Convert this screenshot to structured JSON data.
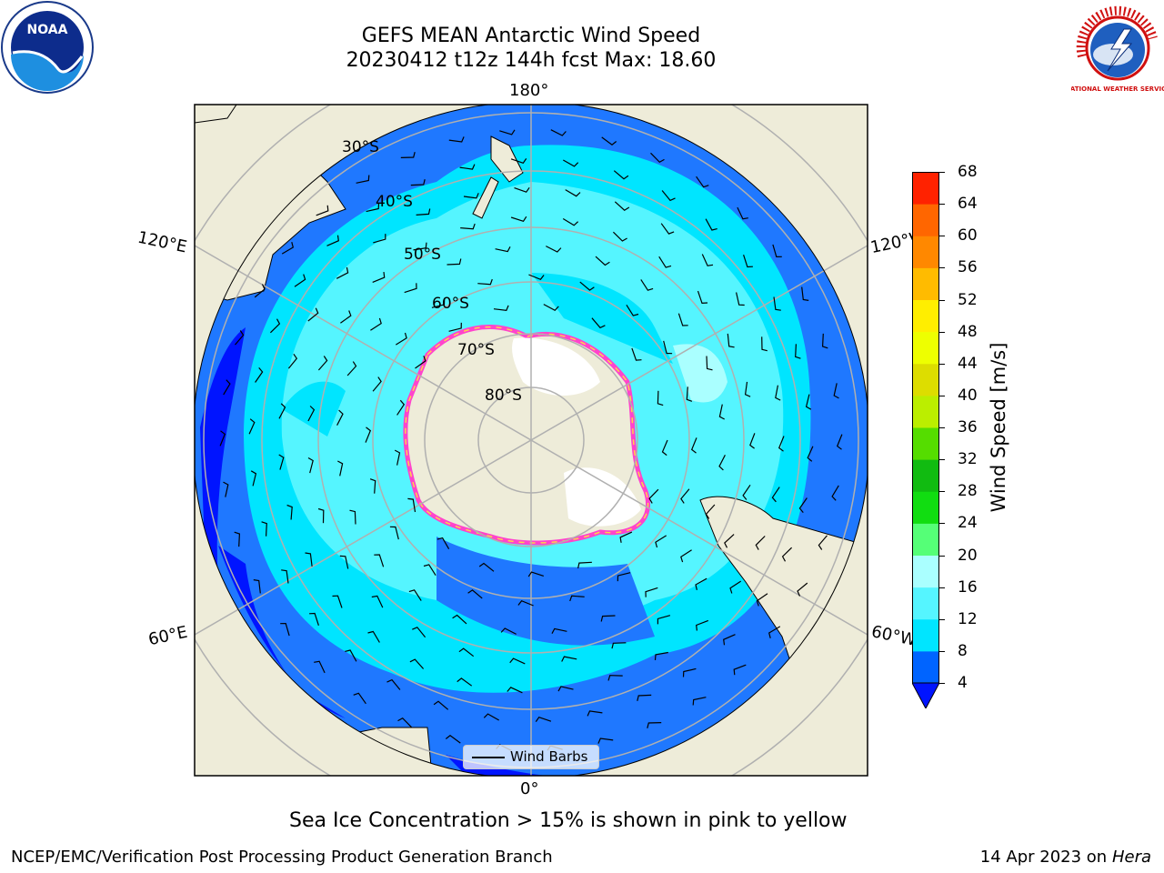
{
  "title": {
    "line1": "GEFS MEAN Antarctic Wind Speed",
    "line2": "20230412 t12z 144h fcst   Max: 18.60"
  },
  "logos": {
    "left": "noaa",
    "left_text": "NOAA",
    "right": "national-weather-service",
    "right_text": "NATIONAL WEATHER SERVICE"
  },
  "map": {
    "projection": "south-polar-stereographic",
    "longitude_labels": {
      "top": "180°",
      "bottom": "0°",
      "left_upper": "120°E",
      "left_lower": "60°E",
      "right_upper": "120°W",
      "right_lower": "60°W"
    },
    "latitude_labels": [
      "30°S",
      "40°S",
      "50°S",
      "60°S",
      "70°S",
      "80°S"
    ],
    "colors": {
      "land": "#eeecd9",
      "ocean_4_8": "#1f78ff",
      "ocean_8_12": "#00e5ff",
      "ocean_12_16": "#55f5ff",
      "ocean_16_20": "#aaffff",
      "below_4": "#0014ff",
      "sea_ice_edge": "#ff44cc"
    },
    "legend": {
      "label": "Wind Barbs"
    }
  },
  "colorbar": {
    "title": "Wind Speed [m/s]",
    "ticks": [
      4,
      8,
      12,
      16,
      20,
      24,
      28,
      32,
      36,
      40,
      44,
      48,
      52,
      56,
      60,
      64,
      68
    ],
    "under_color": "#0014ff",
    "colors": [
      "#0064ff",
      "#00e5ff",
      "#55f5ff",
      "#aaffff",
      "#55ff77",
      "#11dd11",
      "#11bb11",
      "#55dd00",
      "#bbee00",
      "#dddd00",
      "#eeff00",
      "#ffee00",
      "#ffbb00",
      "#ff8800",
      "#ff6600",
      "#ff2200"
    ]
  },
  "note": "Sea Ice Concentration > 15% is shown in pink to yellow",
  "footer": {
    "credit": "NCEP/EMC/Verification Post Processing Product Generation Branch",
    "date": "14 Apr 2023 on",
    "host": "Hera"
  }
}
